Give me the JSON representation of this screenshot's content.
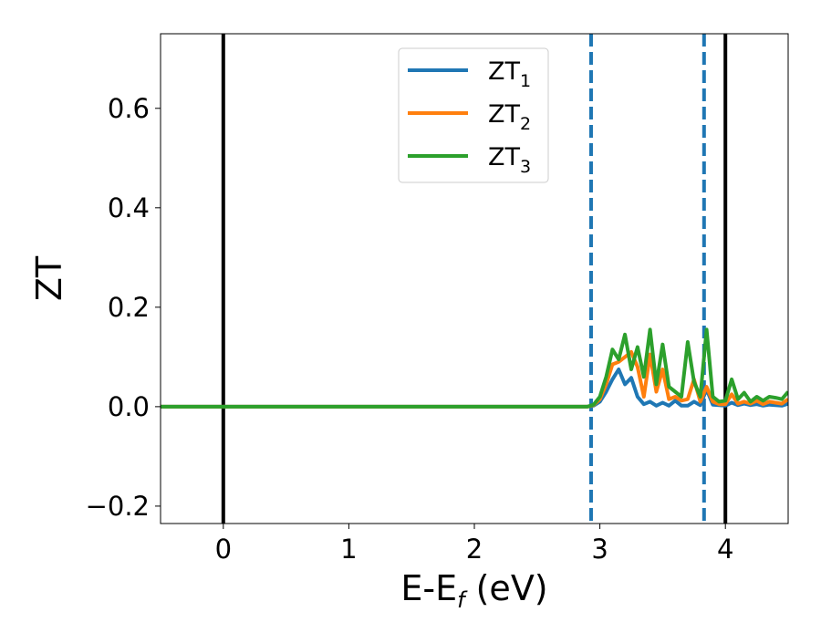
{
  "chart_data": {
    "type": "line",
    "xlabel": "E-E",
    "xlabel_sub": "f",
    "xlabel_unit": " (eV)",
    "ylabel": "ZT",
    "xlim": [
      -0.5,
      4.5
    ],
    "ylim": [
      -0.235,
      0.75
    ],
    "xticks": [
      0,
      1,
      2,
      3,
      4
    ],
    "xtick_labels": [
      "0",
      "1",
      "2",
      "3",
      "4"
    ],
    "yticks": [
      -0.2,
      0.0,
      0.2,
      0.4,
      0.6
    ],
    "ytick_labels": [
      "−0.2",
      "0.0",
      "0.2",
      "0.4",
      "0.6"
    ],
    "grid": false,
    "legend_position": "top-center",
    "vertical_lines": [
      {
        "x": 0.0,
        "style": "solid",
        "color": "#000000"
      },
      {
        "x": 4.0,
        "style": "solid",
        "color": "#000000"
      },
      {
        "x": 2.93,
        "style": "dashed",
        "color": "#1f77b4"
      },
      {
        "x": 3.83,
        "style": "dashed",
        "color": "#1f77b4"
      }
    ],
    "series": [
      {
        "name": "ZT",
        "name_sub": "1",
        "color": "#1f77b4",
        "x": [
          -0.5,
          2.9,
          2.95,
          3.0,
          3.05,
          3.1,
          3.15,
          3.2,
          3.25,
          3.3,
          3.35,
          3.4,
          3.45,
          3.5,
          3.55,
          3.6,
          3.65,
          3.7,
          3.75,
          3.8,
          3.85,
          3.9,
          3.95,
          4.0,
          4.05,
          4.1,
          4.15,
          4.2,
          4.25,
          4.3,
          4.35,
          4.4,
          4.45,
          4.5
        ],
        "y": [
          0.0,
          0.0,
          0.002,
          0.01,
          0.03,
          0.055,
          0.075,
          0.045,
          0.058,
          0.02,
          0.005,
          0.01,
          0.002,
          0.008,
          0.002,
          0.012,
          0.002,
          0.002,
          0.01,
          0.003,
          0.035,
          0.004,
          0.003,
          0.002,
          0.008,
          0.003,
          0.006,
          0.003,
          0.005,
          0.002,
          0.004,
          0.003,
          0.002,
          0.006
        ]
      },
      {
        "name": "ZT",
        "name_sub": "2",
        "color": "#ff7f0e",
        "x": [
          -0.5,
          2.9,
          2.95,
          3.0,
          3.05,
          3.1,
          3.15,
          3.2,
          3.25,
          3.3,
          3.35,
          3.4,
          3.45,
          3.5,
          3.55,
          3.6,
          3.65,
          3.7,
          3.75,
          3.8,
          3.85,
          3.9,
          3.95,
          4.0,
          4.05,
          4.1,
          4.15,
          4.2,
          4.25,
          4.3,
          4.35,
          4.4,
          4.45,
          4.5
        ],
        "y": [
          0.0,
          0.0,
          0.003,
          0.015,
          0.045,
          0.085,
          0.09,
          0.1,
          0.11,
          0.08,
          0.02,
          0.105,
          0.03,
          0.075,
          0.015,
          0.02,
          0.012,
          0.015,
          0.055,
          0.01,
          0.04,
          0.01,
          0.005,
          0.005,
          0.025,
          0.006,
          0.01,
          0.006,
          0.012,
          0.005,
          0.01,
          0.008,
          0.006,
          0.015
        ]
      },
      {
        "name": "ZT",
        "name_sub": "3",
        "color": "#2ca02c",
        "x": [
          -0.5,
          2.9,
          2.95,
          3.0,
          3.05,
          3.1,
          3.15,
          3.2,
          3.25,
          3.3,
          3.35,
          3.4,
          3.45,
          3.5,
          3.55,
          3.6,
          3.65,
          3.7,
          3.75,
          3.8,
          3.85,
          3.9,
          3.95,
          4.0,
          4.05,
          4.1,
          4.15,
          4.2,
          4.25,
          4.3,
          4.35,
          4.4,
          4.45,
          4.5
        ],
        "y": [
          0.0,
          0.0,
          0.004,
          0.02,
          0.06,
          0.115,
          0.095,
          0.145,
          0.075,
          0.12,
          0.06,
          0.155,
          0.045,
          0.125,
          0.04,
          0.03,
          0.02,
          0.13,
          0.05,
          0.02,
          0.155,
          0.02,
          0.01,
          0.012,
          0.055,
          0.015,
          0.028,
          0.01,
          0.02,
          0.012,
          0.02,
          0.018,
          0.015,
          0.03
        ]
      }
    ]
  }
}
